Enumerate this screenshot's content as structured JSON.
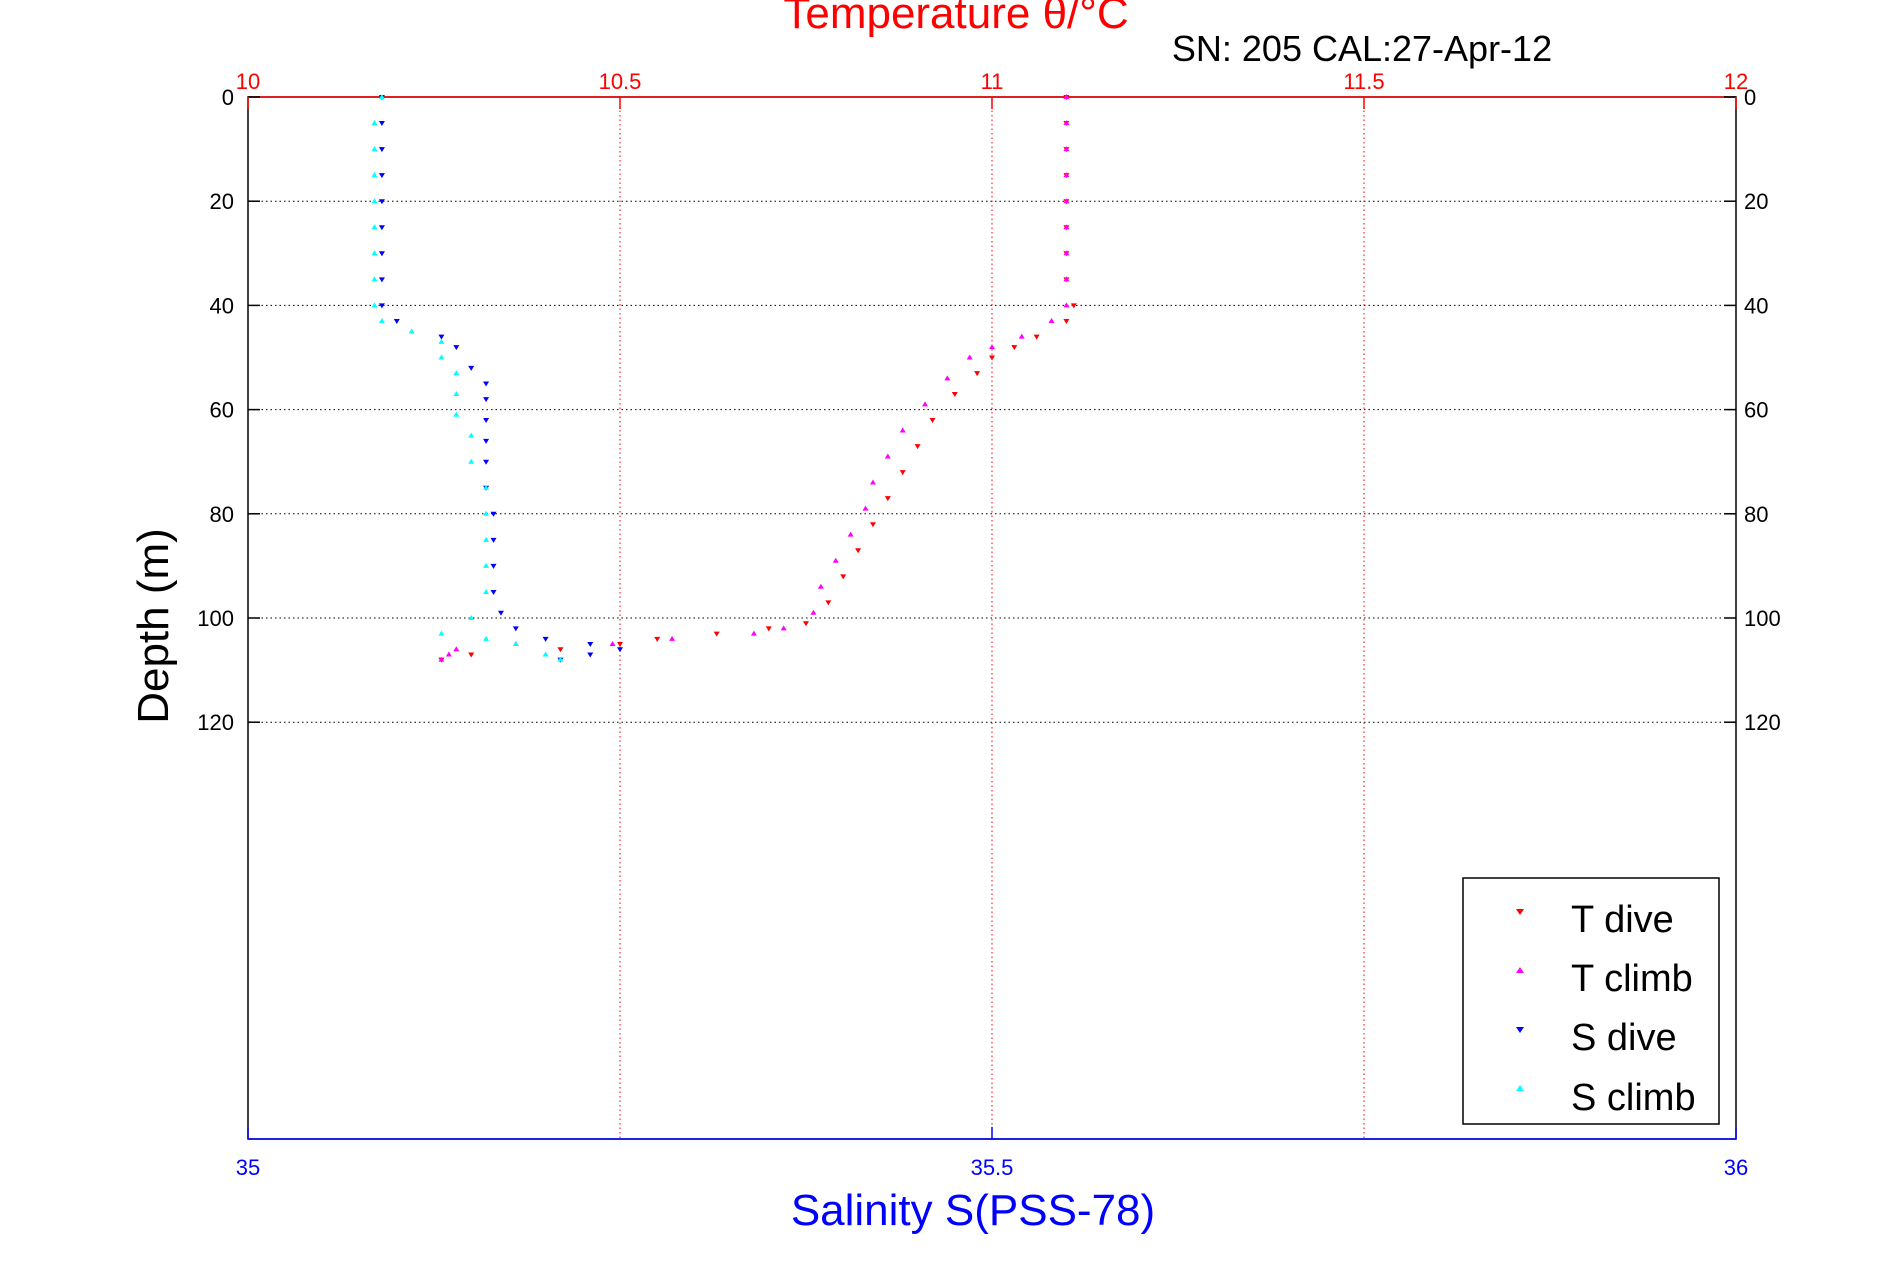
{
  "chart_data": {
    "type": "scatter",
    "title": "Temperature θ/°C",
    "subtitle": "SN: 205  CAL:27-Apr-12",
    "ylabel": "Depth (m)",
    "xlabel": "Salinity S(PSS-78)",
    "top_axis": {
      "label": "Temperature θ/°C",
      "range": [
        10,
        12
      ],
      "ticks": [
        "10",
        "10.5",
        "11",
        "11.5",
        "12"
      ],
      "color": "#ff0000"
    },
    "bottom_axis": {
      "label": "Salinity S(PSS-78)",
      "range": [
        35,
        36
      ],
      "ticks": [
        "35",
        "35.5",
        "36"
      ],
      "color": "#0000ff"
    },
    "y_axis": {
      "range": [
        0,
        200
      ],
      "reversed": true,
      "ticks": [
        "0",
        "20",
        "40",
        "60",
        "80",
        "100",
        "120"
      ]
    },
    "grid": true,
    "legend_position": "bottom-right",
    "series": [
      {
        "name": "T dive",
        "axis": "top",
        "color": "#ff0000",
        "marker": "triangle-down",
        "points": [
          [
            11.1,
            0
          ],
          [
            11.1,
            5
          ],
          [
            11.1,
            10
          ],
          [
            11.1,
            15
          ],
          [
            11.1,
            20
          ],
          [
            11.1,
            25
          ],
          [
            11.1,
            30
          ],
          [
            11.1,
            35
          ],
          [
            11.11,
            40
          ],
          [
            11.1,
            43
          ],
          [
            11.06,
            46
          ],
          [
            11.03,
            48
          ],
          [
            11.0,
            50
          ],
          [
            10.98,
            53
          ],
          [
            10.95,
            57
          ],
          [
            10.92,
            62
          ],
          [
            10.9,
            67
          ],
          [
            10.88,
            72
          ],
          [
            10.86,
            77
          ],
          [
            10.84,
            82
          ],
          [
            10.82,
            87
          ],
          [
            10.8,
            92
          ],
          [
            10.78,
            97
          ],
          [
            10.75,
            101
          ],
          [
            10.7,
            102
          ],
          [
            10.63,
            103
          ],
          [
            10.55,
            104
          ],
          [
            10.5,
            105
          ],
          [
            10.42,
            106
          ],
          [
            10.3,
            107
          ],
          [
            10.26,
            108
          ]
        ]
      },
      {
        "name": "T climb",
        "axis": "top",
        "color": "#ff00ff",
        "marker": "triangle-up",
        "points": [
          [
            11.1,
            0
          ],
          [
            11.1,
            5
          ],
          [
            11.1,
            10
          ],
          [
            11.1,
            15
          ],
          [
            11.1,
            20
          ],
          [
            11.1,
            25
          ],
          [
            11.1,
            30
          ],
          [
            11.1,
            35
          ],
          [
            11.1,
            40
          ],
          [
            11.08,
            43
          ],
          [
            11.04,
            46
          ],
          [
            11.0,
            48
          ],
          [
            10.97,
            50
          ],
          [
            10.94,
            54
          ],
          [
            10.91,
            59
          ],
          [
            10.88,
            64
          ],
          [
            10.86,
            69
          ],
          [
            10.84,
            74
          ],
          [
            10.83,
            79
          ],
          [
            10.81,
            84
          ],
          [
            10.79,
            89
          ],
          [
            10.77,
            94
          ],
          [
            10.76,
            99
          ],
          [
            10.72,
            102
          ],
          [
            10.68,
            103
          ],
          [
            10.57,
            104
          ],
          [
            10.49,
            105
          ],
          [
            10.36,
            105
          ],
          [
            10.28,
            106
          ],
          [
            10.27,
            107
          ],
          [
            10.26,
            108
          ]
        ]
      },
      {
        "name": "S dive",
        "axis": "bottom",
        "color": "#0000ff",
        "marker": "triangle-down",
        "points": [
          [
            35.09,
            0
          ],
          [
            35.09,
            5
          ],
          [
            35.09,
            10
          ],
          [
            35.09,
            15
          ],
          [
            35.09,
            20
          ],
          [
            35.09,
            25
          ],
          [
            35.09,
            30
          ],
          [
            35.09,
            35
          ],
          [
            35.09,
            40
          ],
          [
            35.1,
            43
          ],
          [
            35.13,
            46
          ],
          [
            35.14,
            48
          ],
          [
            35.15,
            52
          ],
          [
            35.16,
            55
          ],
          [
            35.16,
            58
          ],
          [
            35.16,
            62
          ],
          [
            35.16,
            66
          ],
          [
            35.16,
            70
          ],
          [
            35.16,
            75
          ],
          [
            35.165,
            80
          ],
          [
            35.165,
            85
          ],
          [
            35.165,
            90
          ],
          [
            35.165,
            95
          ],
          [
            35.17,
            99
          ],
          [
            35.18,
            102
          ],
          [
            35.2,
            104
          ],
          [
            35.23,
            105
          ],
          [
            35.25,
            106
          ],
          [
            35.23,
            107
          ],
          [
            35.21,
            108
          ]
        ]
      },
      {
        "name": "S climb",
        "axis": "bottom",
        "color": "#00ffff",
        "marker": "triangle-up",
        "points": [
          [
            35.09,
            0
          ],
          [
            35.085,
            5
          ],
          [
            35.085,
            10
          ],
          [
            35.085,
            15
          ],
          [
            35.085,
            20
          ],
          [
            35.085,
            25
          ],
          [
            35.085,
            30
          ],
          [
            35.085,
            35
          ],
          [
            35.085,
            40
          ],
          [
            35.09,
            43
          ],
          [
            35.11,
            45
          ],
          [
            35.13,
            47
          ],
          [
            35.13,
            50
          ],
          [
            35.14,
            53
          ],
          [
            35.14,
            57
          ],
          [
            35.14,
            61
          ],
          [
            35.15,
            65
          ],
          [
            35.15,
            70
          ],
          [
            35.16,
            75
          ],
          [
            35.16,
            80
          ],
          [
            35.16,
            85
          ],
          [
            35.16,
            90
          ],
          [
            35.16,
            95
          ],
          [
            35.15,
            100
          ],
          [
            35.13,
            103
          ],
          [
            35.16,
            104
          ],
          [
            35.18,
            105
          ],
          [
            35.2,
            107
          ],
          [
            35.21,
            108
          ]
        ]
      }
    ]
  }
}
